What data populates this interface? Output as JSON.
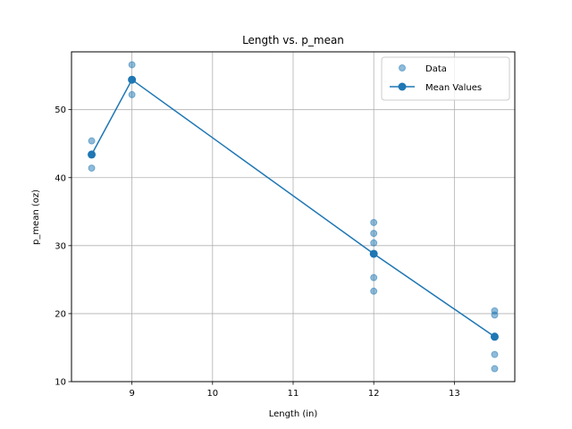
{
  "chart_data": {
    "type": "scatter",
    "title": "Length vs. p_mean",
    "xlabel": "Length (in)",
    "ylabel": "p_mean (oz)",
    "xlim": [
      8.25,
      13.75
    ],
    "ylim": [
      10,
      58.5
    ],
    "xticks": [
      9,
      10,
      11,
      12,
      13
    ],
    "yticks": [
      10,
      20,
      30,
      40,
      50
    ],
    "grid": true,
    "legend": "top-right",
    "color": "#1f77b4",
    "series": [
      {
        "name": "Data",
        "kind": "scatter",
        "points": [
          [
            8.5,
            45.4
          ],
          [
            8.5,
            43.4
          ],
          [
            8.5,
            41.4
          ],
          [
            9.0,
            56.6
          ],
          [
            9.0,
            54.4
          ],
          [
            9.0,
            52.2
          ],
          [
            12.0,
            33.4
          ],
          [
            12.0,
            31.8
          ],
          [
            12.0,
            30.4
          ],
          [
            12.0,
            28.8
          ],
          [
            12.0,
            25.3
          ],
          [
            12.0,
            23.3
          ],
          [
            13.5,
            20.4
          ],
          [
            13.5,
            19.8
          ],
          [
            13.5,
            16.7
          ],
          [
            13.5,
            14.0
          ],
          [
            13.5,
            11.9
          ]
        ]
      },
      {
        "name": "Mean Values",
        "kind": "line",
        "points": [
          [
            8.5,
            43.4
          ],
          [
            9.0,
            54.4
          ],
          [
            12.0,
            28.8
          ],
          [
            13.5,
            16.6
          ]
        ]
      }
    ]
  }
}
